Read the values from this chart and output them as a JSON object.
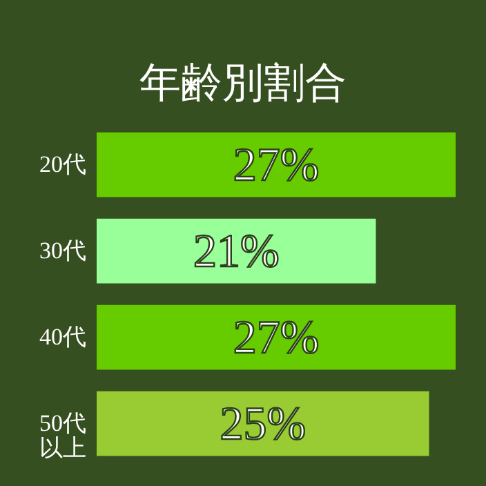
{
  "chart_data": {
    "type": "bar",
    "orientation": "horizontal",
    "title": "年齢別割合",
    "categories": [
      "20代",
      "30代",
      "40代",
      "50代以上"
    ],
    "values": [
      27,
      21,
      27,
      25
    ],
    "colors": [
      "#66cc00",
      "#99ff99",
      "#66cc00",
      "#99cc33"
    ],
    "value_labels": [
      "27%",
      "21%",
      "27%",
      "25%"
    ]
  }
}
